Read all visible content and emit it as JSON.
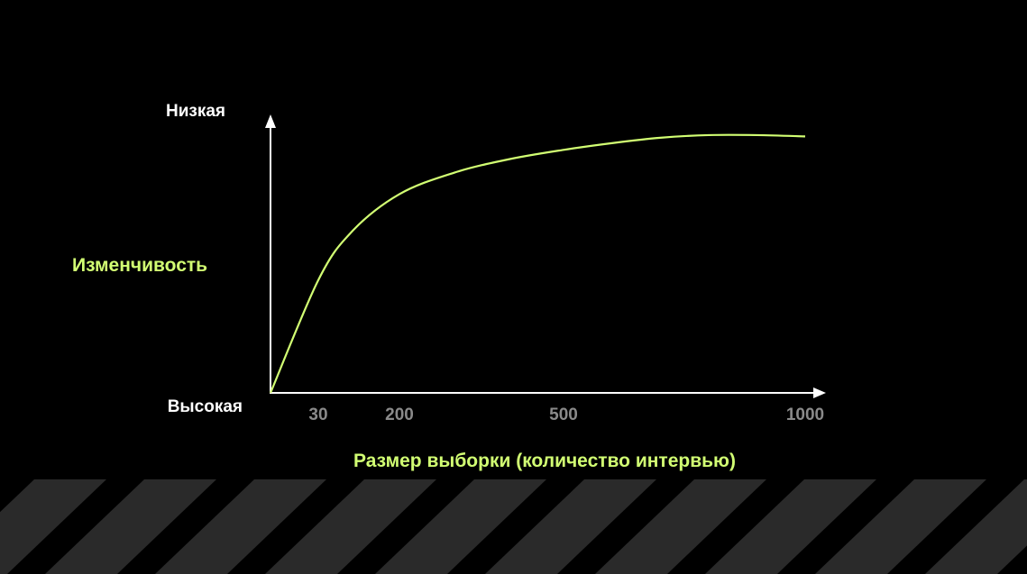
{
  "chart_data": {
    "type": "line",
    "title": "",
    "ylabel": "Изменчивость",
    "xlabel": "Размер выборки (количество интервью)",
    "y_top_label": "Низкая",
    "y_bottom_label": "Высокая",
    "x_ticks": [
      {
        "value": 30,
        "label": "30"
      },
      {
        "value": 200,
        "label": "200"
      },
      {
        "value": 500,
        "label": "500"
      },
      {
        "value": 1000,
        "label": "1000"
      }
    ],
    "series": [
      {
        "name": "",
        "color": "#d2ff73",
        "points": [
          {
            "x": 0,
            "y": 0
          },
          {
            "x": 30,
            "y": 0.42
          },
          {
            "x": 100,
            "y": 0.6
          },
          {
            "x": 200,
            "y": 0.74
          },
          {
            "x": 300,
            "y": 0.82
          },
          {
            "x": 400,
            "y": 0.87
          },
          {
            "x": 500,
            "y": 0.905
          },
          {
            "x": 600,
            "y": 0.93
          },
          {
            "x": 700,
            "y": 0.95
          },
          {
            "x": 800,
            "y": 0.96
          },
          {
            "x": 900,
            "y": 0.96
          },
          {
            "x": 1000,
            "y": 0.955
          }
        ]
      }
    ],
    "xlim": [
      0,
      1000
    ],
    "ylim": [
      0,
      1
    ],
    "grid": false
  },
  "colors": {
    "background": "#000000",
    "accent": "#d2ff73",
    "axis": "#ffffff",
    "tick_text": "#8a8a8a",
    "stripe": "#2a2a2a"
  }
}
